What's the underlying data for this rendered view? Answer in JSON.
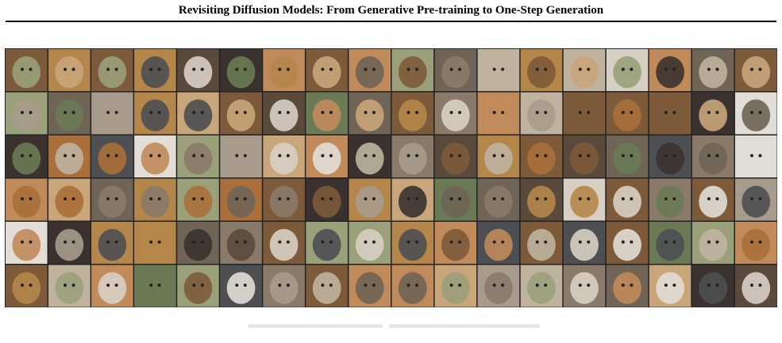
{
  "header": {
    "title": "Revisiting Diffusion Models: From Generative Pre-training to One-Step Generation"
  }
}
